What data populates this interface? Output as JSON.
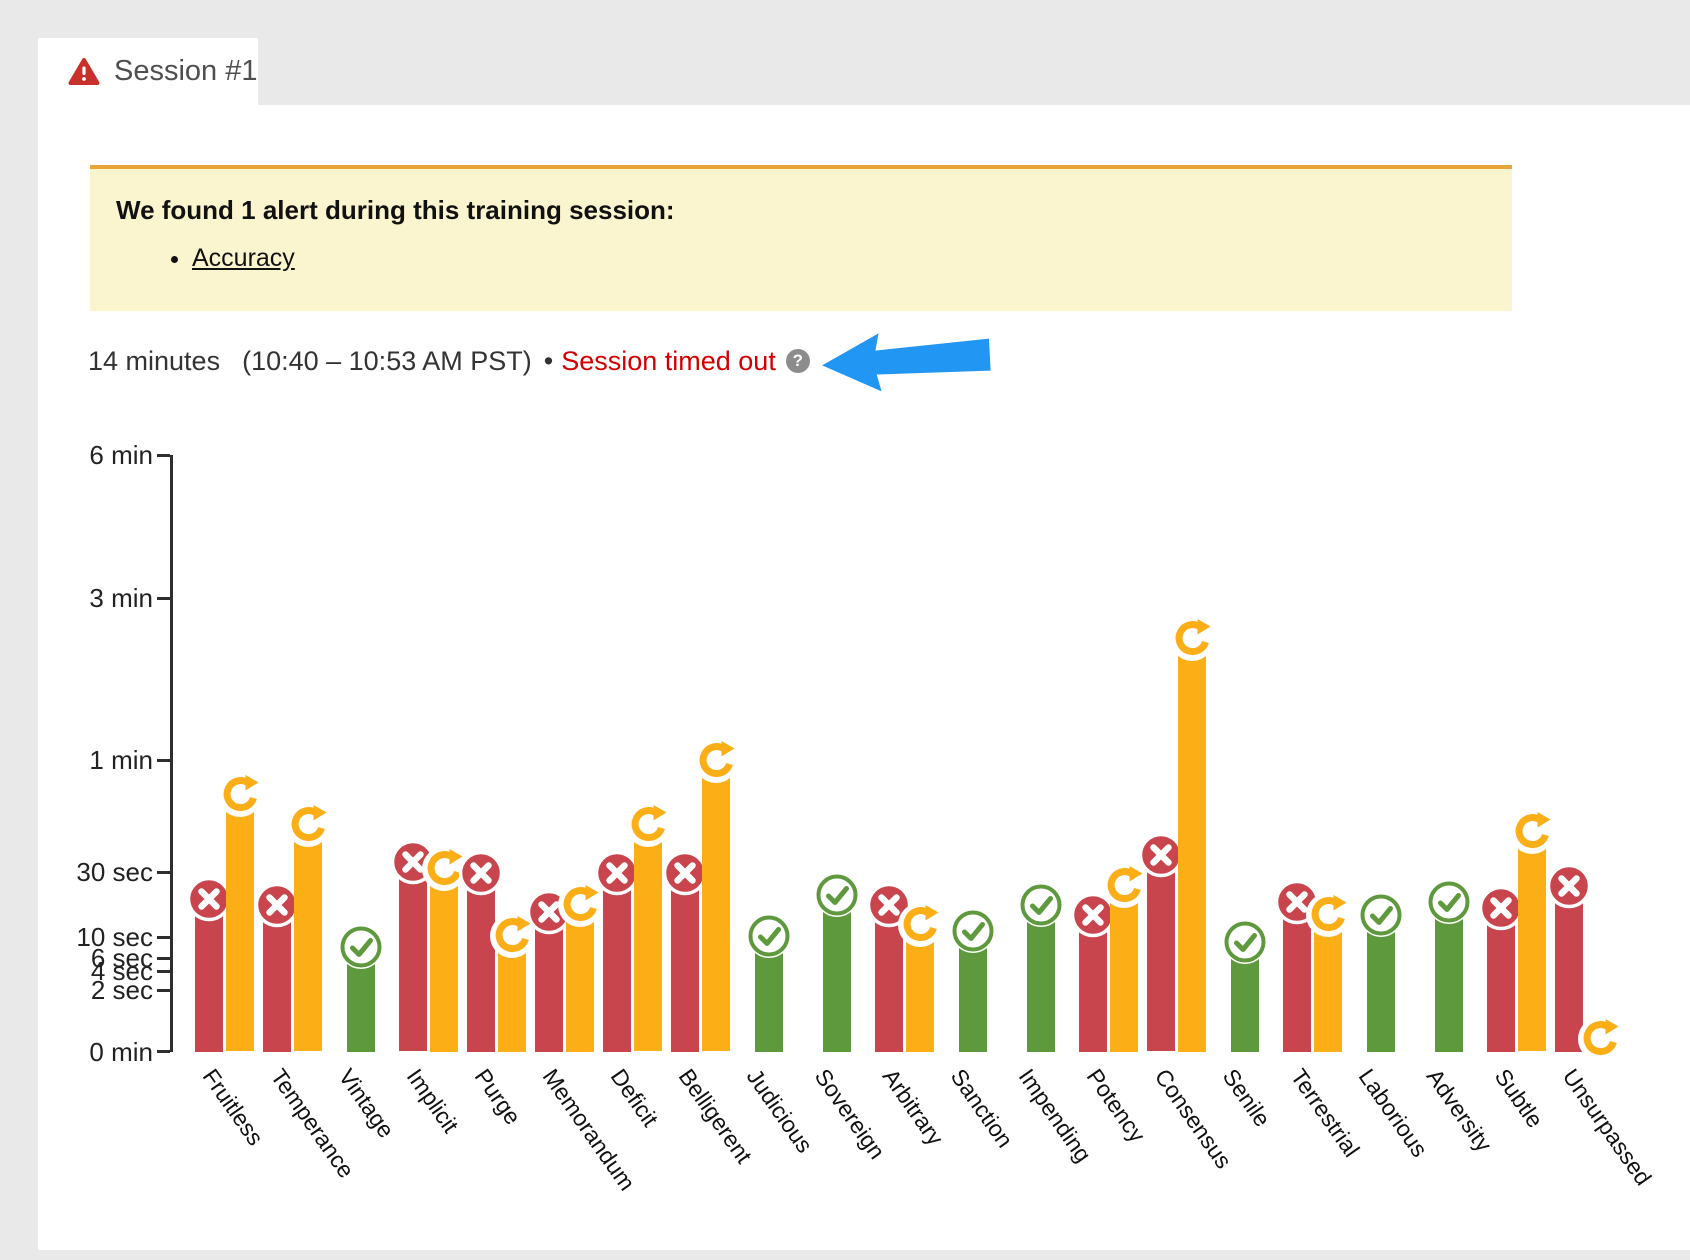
{
  "tab": {
    "label": "Session #1",
    "warning_icon": "warning-triangle-icon"
  },
  "alert_box": {
    "title": "We found 1 alert during this training session:",
    "alerts": [
      "Accuracy"
    ]
  },
  "session_info": {
    "duration": "14 minutes",
    "time_range": "(10:40 – 10:53 AM PST)",
    "separator": "•",
    "status": "Session timed out",
    "help_glyph": "?",
    "annotation_icon": "blue-arrow-icon"
  },
  "chart_data": {
    "type": "bar",
    "title": "",
    "xlabel": "",
    "ylabel": "",
    "unit": "seconds",
    "grid": false,
    "ylim": [
      0,
      360
    ],
    "yticks": [
      {
        "label": "6 min",
        "seconds": 360
      },
      {
        "label": "3 min",
        "seconds": 180
      },
      {
        "label": "1 min",
        "seconds": 60
      },
      {
        "label": "30 sec",
        "seconds": 30
      },
      {
        "label": "10 sec",
        "seconds": 10
      },
      {
        "label": "6 sec",
        "seconds": 6
      },
      {
        "label": "4 sec",
        "seconds": 4
      },
      {
        "label": "2 sec",
        "seconds": 2
      },
      {
        "label": "0 min",
        "seconds": 0
      }
    ],
    "colors": {
      "incorrect": "#c8454d",
      "correct": "#5f993d",
      "retry": "#fcae17"
    },
    "icons": {
      "incorrect": "x-circle-icon",
      "correct": "check-circle-icon",
      "retry": "retry-circle-icon"
    },
    "categories": [
      {
        "label": "Fruitless",
        "bars": [
          {
            "type": "incorrect",
            "seconds": 20
          },
          {
            "type": "retry",
            "seconds": 49
          }
        ]
      },
      {
        "label": "Temperance",
        "bars": [
          {
            "type": "incorrect",
            "seconds": 18
          },
          {
            "type": "retry",
            "seconds": 41
          }
        ]
      },
      {
        "label": "Vintage",
        "bars": [
          {
            "type": "correct",
            "seconds": 7
          }
        ]
      },
      {
        "label": "Implicit",
        "bars": [
          {
            "type": "incorrect",
            "seconds": 31
          },
          {
            "type": "retry",
            "seconds": 29
          }
        ]
      },
      {
        "label": "Purge",
        "bars": [
          {
            "type": "incorrect",
            "seconds": 28
          },
          {
            "type": "retry",
            "seconds": 9
          }
        ]
      },
      {
        "label": "Memorandum",
        "bars": [
          {
            "type": "incorrect",
            "seconds": 16
          },
          {
            "type": "retry",
            "seconds": 18
          }
        ]
      },
      {
        "label": "Deficit",
        "bars": [
          {
            "type": "incorrect",
            "seconds": 28
          },
          {
            "type": "retry",
            "seconds": 41
          }
        ]
      },
      {
        "label": "Belligerent",
        "bars": [
          {
            "type": "incorrect",
            "seconds": 28
          },
          {
            "type": "retry",
            "seconds": 58
          }
        ]
      },
      {
        "label": "Judicious",
        "bars": [
          {
            "type": "correct",
            "seconds": 9
          }
        ]
      },
      {
        "label": "Sovereign",
        "bars": [
          {
            "type": "correct",
            "seconds": 21
          }
        ]
      },
      {
        "label": "Arbitrary",
        "bars": [
          {
            "type": "incorrect",
            "seconds": 18
          },
          {
            "type": "retry",
            "seconds": 12
          }
        ]
      },
      {
        "label": "Sanction",
        "bars": [
          {
            "type": "correct",
            "seconds": 10
          }
        ]
      },
      {
        "label": "Impending",
        "bars": [
          {
            "type": "correct",
            "seconds": 18
          }
        ]
      },
      {
        "label": "Potency",
        "bars": [
          {
            "type": "incorrect",
            "seconds": 15
          },
          {
            "type": "retry",
            "seconds": 24
          }
        ]
      },
      {
        "label": "Consensus",
        "bars": [
          {
            "type": "incorrect",
            "seconds": 33
          },
          {
            "type": "retry",
            "seconds": 145
          }
        ]
      },
      {
        "label": "Senile",
        "bars": [
          {
            "type": "correct",
            "seconds": 8
          }
        ]
      },
      {
        "label": "Terrestrial",
        "bars": [
          {
            "type": "incorrect",
            "seconds": 19
          },
          {
            "type": "retry",
            "seconds": 15
          }
        ]
      },
      {
        "label": "Laborious",
        "bars": [
          {
            "type": "correct",
            "seconds": 15
          }
        ]
      },
      {
        "label": "Adversity",
        "bars": [
          {
            "type": "correct",
            "seconds": 19
          }
        ]
      },
      {
        "label": "Subtle",
        "bars": [
          {
            "type": "incorrect",
            "seconds": 17
          },
          {
            "type": "retry",
            "seconds": 39
          }
        ]
      },
      {
        "label": "Unsurpassed",
        "bars": [
          {
            "type": "incorrect",
            "seconds": 24
          },
          {
            "type": "retry",
            "seconds": 0.2
          }
        ]
      }
    ]
  }
}
